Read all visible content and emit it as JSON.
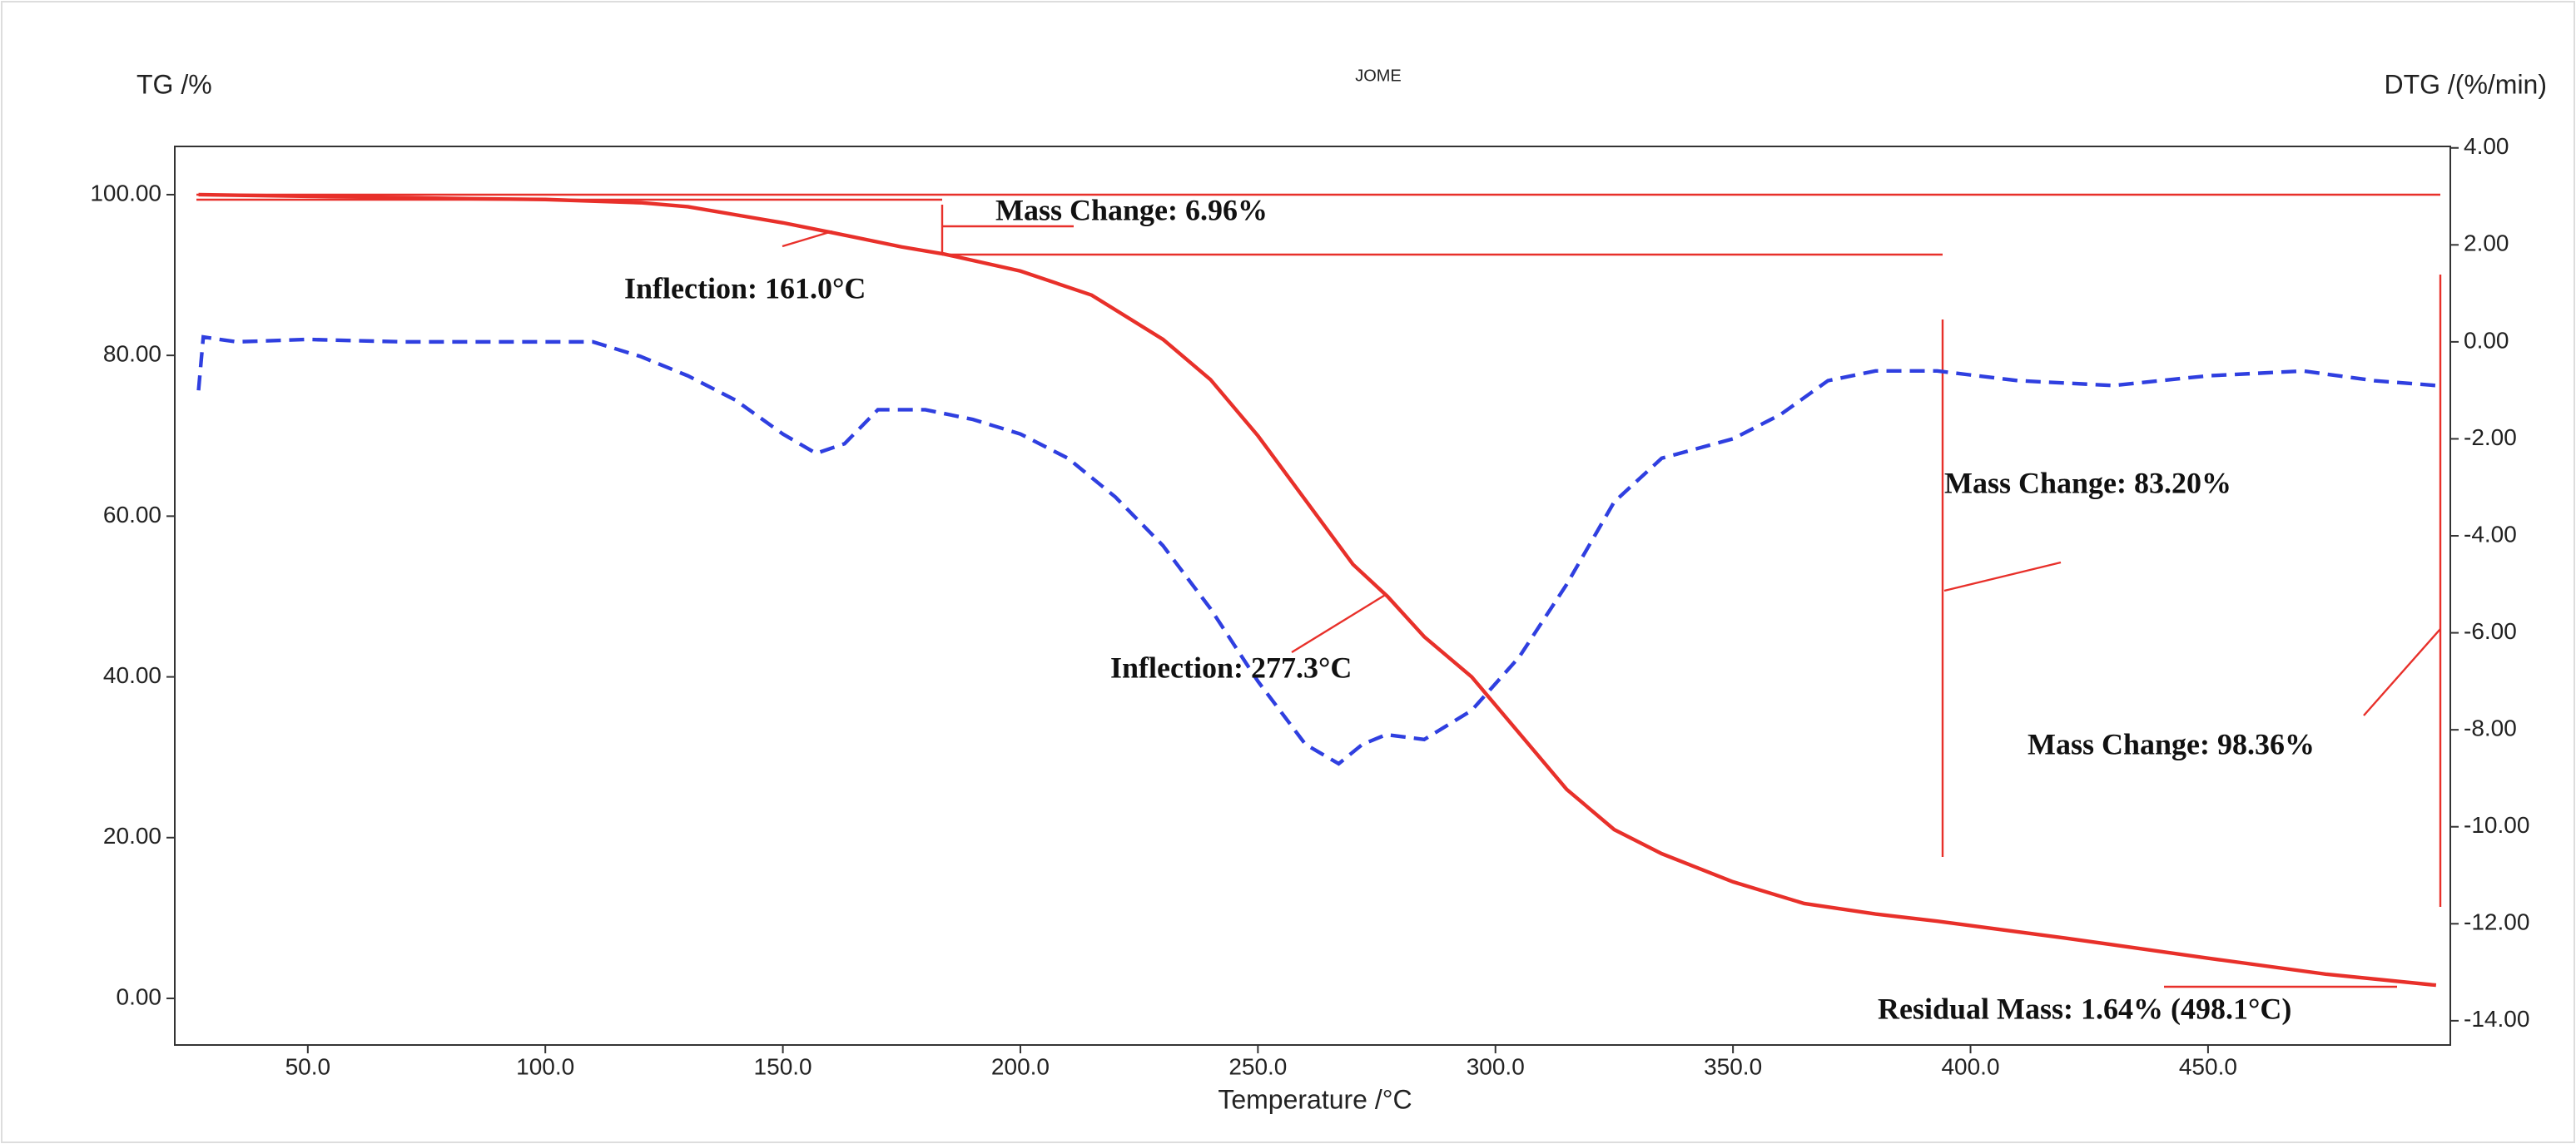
{
  "chart_data": {
    "type": "line",
    "title": "JOME",
    "y_label": "TG /%",
    "y2_label": "DTG /(%/min)",
    "x_label": "Temperature /°C",
    "xlim": [
      22,
      501
    ],
    "ylim": [
      -5.8,
      106
    ],
    "y2lim": [
      -14.5,
      4.03
    ],
    "xticks": [
      {
        "value": 50,
        "label": "50.0"
      },
      {
        "value": 100,
        "label": "100.0"
      },
      {
        "value": 150,
        "label": "150.0"
      },
      {
        "value": 200,
        "label": "200.0"
      },
      {
        "value": 250,
        "label": "250.0"
      },
      {
        "value": 300,
        "label": "300.0"
      },
      {
        "value": 350,
        "label": "350.0"
      },
      {
        "value": 400,
        "label": "400.0"
      },
      {
        "value": 450,
        "label": "450.0"
      }
    ],
    "yticks": [
      {
        "value": 0,
        "label": "0.00"
      },
      {
        "value": 20,
        "label": "20.00"
      },
      {
        "value": 40,
        "label": "40.00"
      },
      {
        "value": 60,
        "label": "60.00"
      },
      {
        "value": 80,
        "label": "80.00"
      },
      {
        "value": 100,
        "label": "100.00"
      }
    ],
    "y2ticks": [
      {
        "value": -14,
        "label": "-14.00"
      },
      {
        "value": -12,
        "label": "-12.00"
      },
      {
        "value": -10,
        "label": "-10.00"
      },
      {
        "value": -8,
        "label": "-8.00"
      },
      {
        "value": -6,
        "label": "-6.00"
      },
      {
        "value": -4,
        "label": "-4.00"
      },
      {
        "value": -2,
        "label": "-2.00"
      },
      {
        "value": 0,
        "label": "0.00"
      },
      {
        "value": 2,
        "label": "2.00"
      },
      {
        "value": 4,
        "label": "4.00"
      }
    ],
    "series": [
      {
        "color": "#e8302a",
        "style": "solid",
        "x": [
          27,
          50,
          84,
          100,
          120,
          130,
          140,
          150,
          161,
          175,
          184,
          200,
          215,
          230,
          240,
          250,
          260,
          270,
          277.3,
          285,
          295,
          305,
          315,
          325,
          335,
          350,
          365,
          380,
          393,
          420,
          450,
          475,
          498
        ],
        "values": [
          100,
          99.8,
          99.5,
          99.4,
          99,
          98.5,
          97.5,
          96.5,
          95.2,
          93.5,
          92.6,
          90.5,
          87.5,
          82,
          77,
          70,
          62,
          54,
          50,
          45,
          40,
          33,
          26,
          21,
          18,
          14.5,
          11.8,
          10.5,
          9.6,
          7.5,
          5,
          3,
          1.64
        ]
      },
      {
        "color": "#2f3fe0",
        "style": "dashed",
        "axis": "y2",
        "x": [
          27,
          28,
          35,
          50,
          70,
          90,
          100,
          110,
          120,
          130,
          140,
          150,
          157,
          163,
          170,
          180,
          190,
          200,
          210,
          220,
          230,
          240,
          250,
          260,
          267,
          272,
          277,
          285,
          295,
          305,
          315,
          325,
          335,
          350,
          360,
          370,
          380,
          393,
          410,
          430,
          450,
          470,
          485,
          498
        ],
        "values": [
          -1,
          0.1,
          0,
          0.05,
          0,
          0,
          0,
          0,
          -0.3,
          -0.7,
          -1.2,
          -1.9,
          -2.3,
          -2.1,
          -1.4,
          -1.4,
          -1.6,
          -1.9,
          -2.4,
          -3.2,
          -4.2,
          -5.5,
          -7,
          -8.3,
          -8.7,
          -8.3,
          -8.1,
          -8.2,
          -7.6,
          -6.5,
          -5,
          -3.3,
          -2.4,
          -2,
          -1.5,
          -0.8,
          -0.6,
          -0.6,
          -0.8,
          -0.9,
          -0.7,
          -0.6,
          -0.8,
          -0.9
        ]
      }
    ],
    "annotations": [
      "Mass Change: 6.96%",
      "Inflection: 161.0°C",
      "Inflection: 277.3°C",
      "Mass Change: 83.20%",
      "Mass Change: 98.36%",
      "Residual Mass: 1.64% (498.1°C)"
    ]
  }
}
